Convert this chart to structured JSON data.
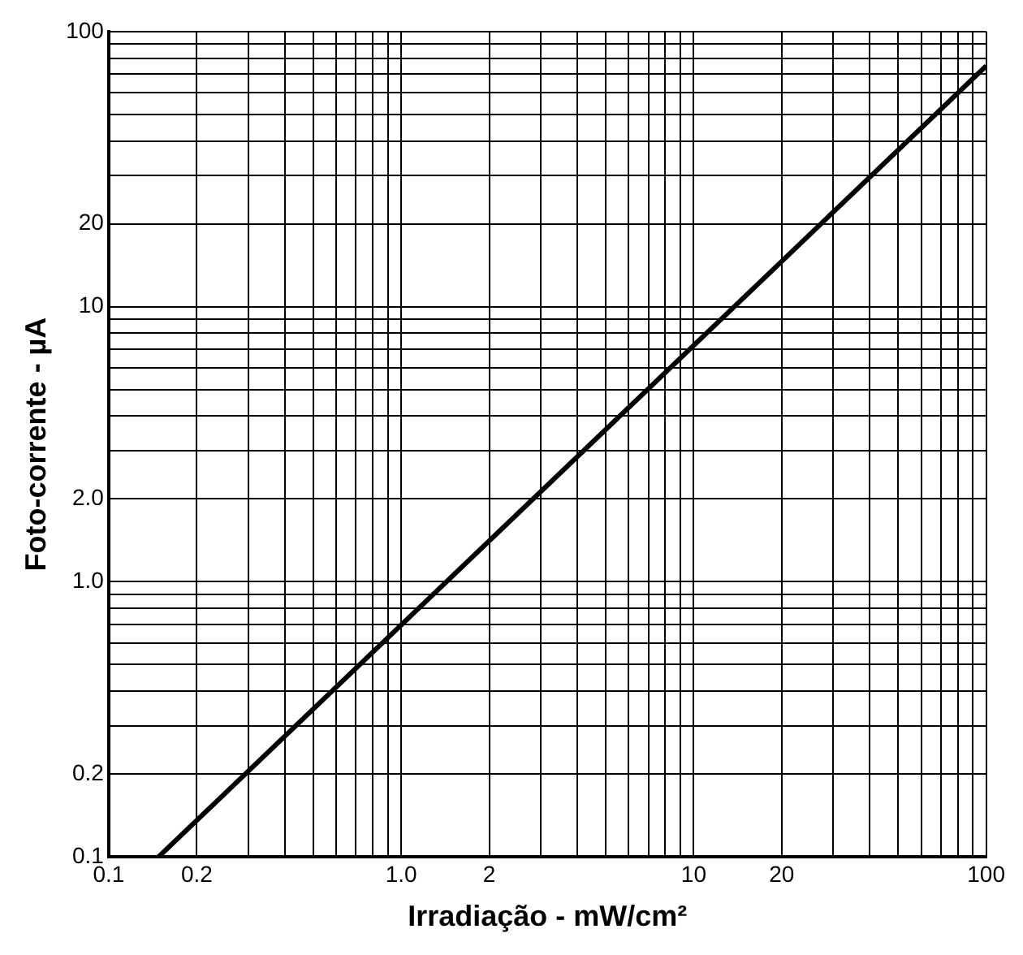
{
  "chart_data": {
    "type": "line",
    "xlabel": "Irradiação - mW/cm²",
    "ylabel": "Foto-corrente - µA",
    "log": "xy",
    "grid": true,
    "marker": "none",
    "line_style": "solid",
    "x": [
      0.148,
      100
    ],
    "series": [
      {
        "color": "#000000",
        "values": [
          0.1,
          75
        ]
      }
    ],
    "xlim": [
      0.1,
      100
    ],
    "ylim": [
      0.1,
      100
    ],
    "xticks": [
      {
        "value": 0.1,
        "label": "0.1"
      },
      {
        "value": 0.2,
        "label": "0.2"
      },
      {
        "value": 0.3,
        "label": null
      },
      {
        "value": 0.4,
        "label": null
      },
      {
        "value": 0.5,
        "label": null
      },
      {
        "value": 0.6,
        "label": null
      },
      {
        "value": 0.7,
        "label": null
      },
      {
        "value": 0.8,
        "label": null
      },
      {
        "value": 0.9,
        "label": null
      },
      {
        "value": 1,
        "label": "1.0"
      },
      {
        "value": 2,
        "label": "2"
      },
      {
        "value": 3,
        "label": null
      },
      {
        "value": 4,
        "label": null
      },
      {
        "value": 5,
        "label": null
      },
      {
        "value": 6,
        "label": null
      },
      {
        "value": 7,
        "label": null
      },
      {
        "value": 8,
        "label": null
      },
      {
        "value": 9,
        "label": null
      },
      {
        "value": 10,
        "label": "10"
      },
      {
        "value": 20,
        "label": "20"
      },
      {
        "value": 30,
        "label": null
      },
      {
        "value": 40,
        "label": null
      },
      {
        "value": 50,
        "label": null
      },
      {
        "value": 60,
        "label": null
      },
      {
        "value": 70,
        "label": null
      },
      {
        "value": 80,
        "label": null
      },
      {
        "value": 90,
        "label": null
      },
      {
        "value": 100,
        "label": "100"
      }
    ],
    "yticks": [
      {
        "value": 0.1,
        "label": "0.1"
      },
      {
        "value": 0.2,
        "label": "0.2"
      },
      {
        "value": 0.3,
        "label": null
      },
      {
        "value": 0.4,
        "label": null
      },
      {
        "value": 0.5,
        "label": null
      },
      {
        "value": 0.6,
        "label": null
      },
      {
        "value": 0.7,
        "label": null
      },
      {
        "value": 0.8,
        "label": null
      },
      {
        "value": 0.9,
        "label": null
      },
      {
        "value": 1,
        "label": "1.0"
      },
      {
        "value": 2,
        "label": "2.0"
      },
      {
        "value": 3,
        "label": null
      },
      {
        "value": 4,
        "label": null
      },
      {
        "value": 5,
        "label": null
      },
      {
        "value": 6,
        "label": null
      },
      {
        "value": 7,
        "label": null
      },
      {
        "value": 8,
        "label": null
      },
      {
        "value": 9,
        "label": null
      },
      {
        "value": 10,
        "label": "10"
      },
      {
        "value": 20,
        "label": "20"
      },
      {
        "value": 30,
        "label": null
      },
      {
        "value": 40,
        "label": null
      },
      {
        "value": 50,
        "label": null
      },
      {
        "value": 60,
        "label": null
      },
      {
        "value": 70,
        "label": null
      },
      {
        "value": 80,
        "label": null
      },
      {
        "value": 90,
        "label": null
      },
      {
        "value": 100,
        "label": "100"
      }
    ]
  }
}
